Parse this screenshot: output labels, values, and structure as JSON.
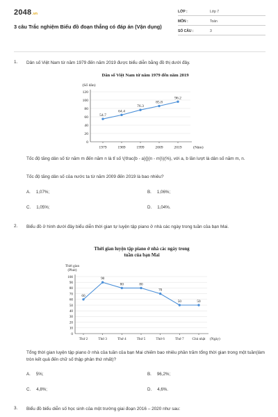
{
  "header": {
    "logo": "2048",
    "logo_sub": ".vn",
    "title": "3 câu Trắc nghiệm Biểu đồ đoạn thẳng có đáp án (Vận dụng)",
    "meta": [
      {
        "key": "LỚP :",
        "value": "Lớp 7"
      },
      {
        "key": "MÔN :",
        "value": "Toán"
      },
      {
        "key": "SỐ CÂU :",
        "value": "3"
      }
    ]
  },
  "questions": [
    {
      "num": "1.",
      "intro": "Dân số Việt Nam từ năm 1979 đến năm 2019 được biểu diễn bằng đồ thị dưới đây.",
      "note": "Tốc độ tăng dân số từ năm m đến năm n là tỉ số \\(\\frac{b - a}{}{n - m}\\)(%), với a, b lần lượt là dân số năm m, n.",
      "question": "Tốc độ tăng dân số của nước ta từ năm 2009 đến 2019 là bao nhiêu?",
      "options": [
        {
          "letter": "A.",
          "text": "1,07%;"
        },
        {
          "letter": "B.",
          "text": "1,06%;"
        },
        {
          "letter": "C.",
          "text": "1,05%;"
        },
        {
          "letter": "D.",
          "text": "1,04%."
        }
      ]
    },
    {
      "num": "2.",
      "intro": "Biểu đồ ở hình dưới đây biểu diễn thời gian tự luyện tập piano ở nhà các ngày trong tuần của bạn Mai.",
      "question": "Tổng thời gian luyện tập piano ở nhà của tuần của bạn Mai chiếm bao nhiêu phần trăm tổng thời gian trong một tuần(làm tròn kết quả đến chữ số thập phân thứ nhất)?",
      "options": [
        {
          "letter": "A.",
          "text": "5%;"
        },
        {
          "letter": "B.",
          "text": "96,2%;"
        },
        {
          "letter": "C.",
          "text": "4,8%;"
        },
        {
          "letter": "D.",
          "text": "4,6%."
        }
      ]
    },
    {
      "num": "3.",
      "intro": "Biểu đồ biểu diễn số học sinh của một trường giai đoạn 2016 – 2020 như sau:"
    }
  ],
  "chart_data": [
    {
      "type": "line",
      "title": "Dân số Việt Nam từ năm 1979 đến năm 2019",
      "ylabel": "(Số dân)",
      "xlabel": "(Năm)",
      "categories": [
        "1979",
        "1989",
        "1999",
        "2009",
        "2019"
      ],
      "values": [
        54.7,
        64.4,
        76.3,
        85.8,
        96.2
      ],
      "value_labels": [
        "54.7",
        "64.4",
        "76.3",
        "85.8",
        "96.2"
      ],
      "yticks": [
        0,
        20,
        40,
        60,
        80,
        100,
        120
      ],
      "ylim": [
        0,
        120
      ],
      "color": "#4a8fd8"
    },
    {
      "type": "line",
      "title": "Thời gian luyện tập piano ở nhà các ngày trong tuần của bạn Mai",
      "ylabel_lines": [
        "Thời gian",
        "(Phút)"
      ],
      "xlabel": "(Ngày)",
      "categories": [
        "Thứ 2",
        "Thứ 3",
        "Thứ 4",
        "Thứ 5",
        "Thứ 6",
        "Thứ 7",
        "Chủ nhật"
      ],
      "values": [
        60,
        90,
        80,
        80,
        70,
        50,
        50
      ],
      "value_labels": [
        "60",
        "90",
        "80",
        "80",
        "70",
        "50",
        "50"
      ],
      "yticks": [
        0,
        10,
        20,
        30,
        40,
        50,
        60,
        70,
        80,
        90,
        100
      ],
      "ylim": [
        0,
        100
      ],
      "color": "#4a8fd8"
    }
  ]
}
